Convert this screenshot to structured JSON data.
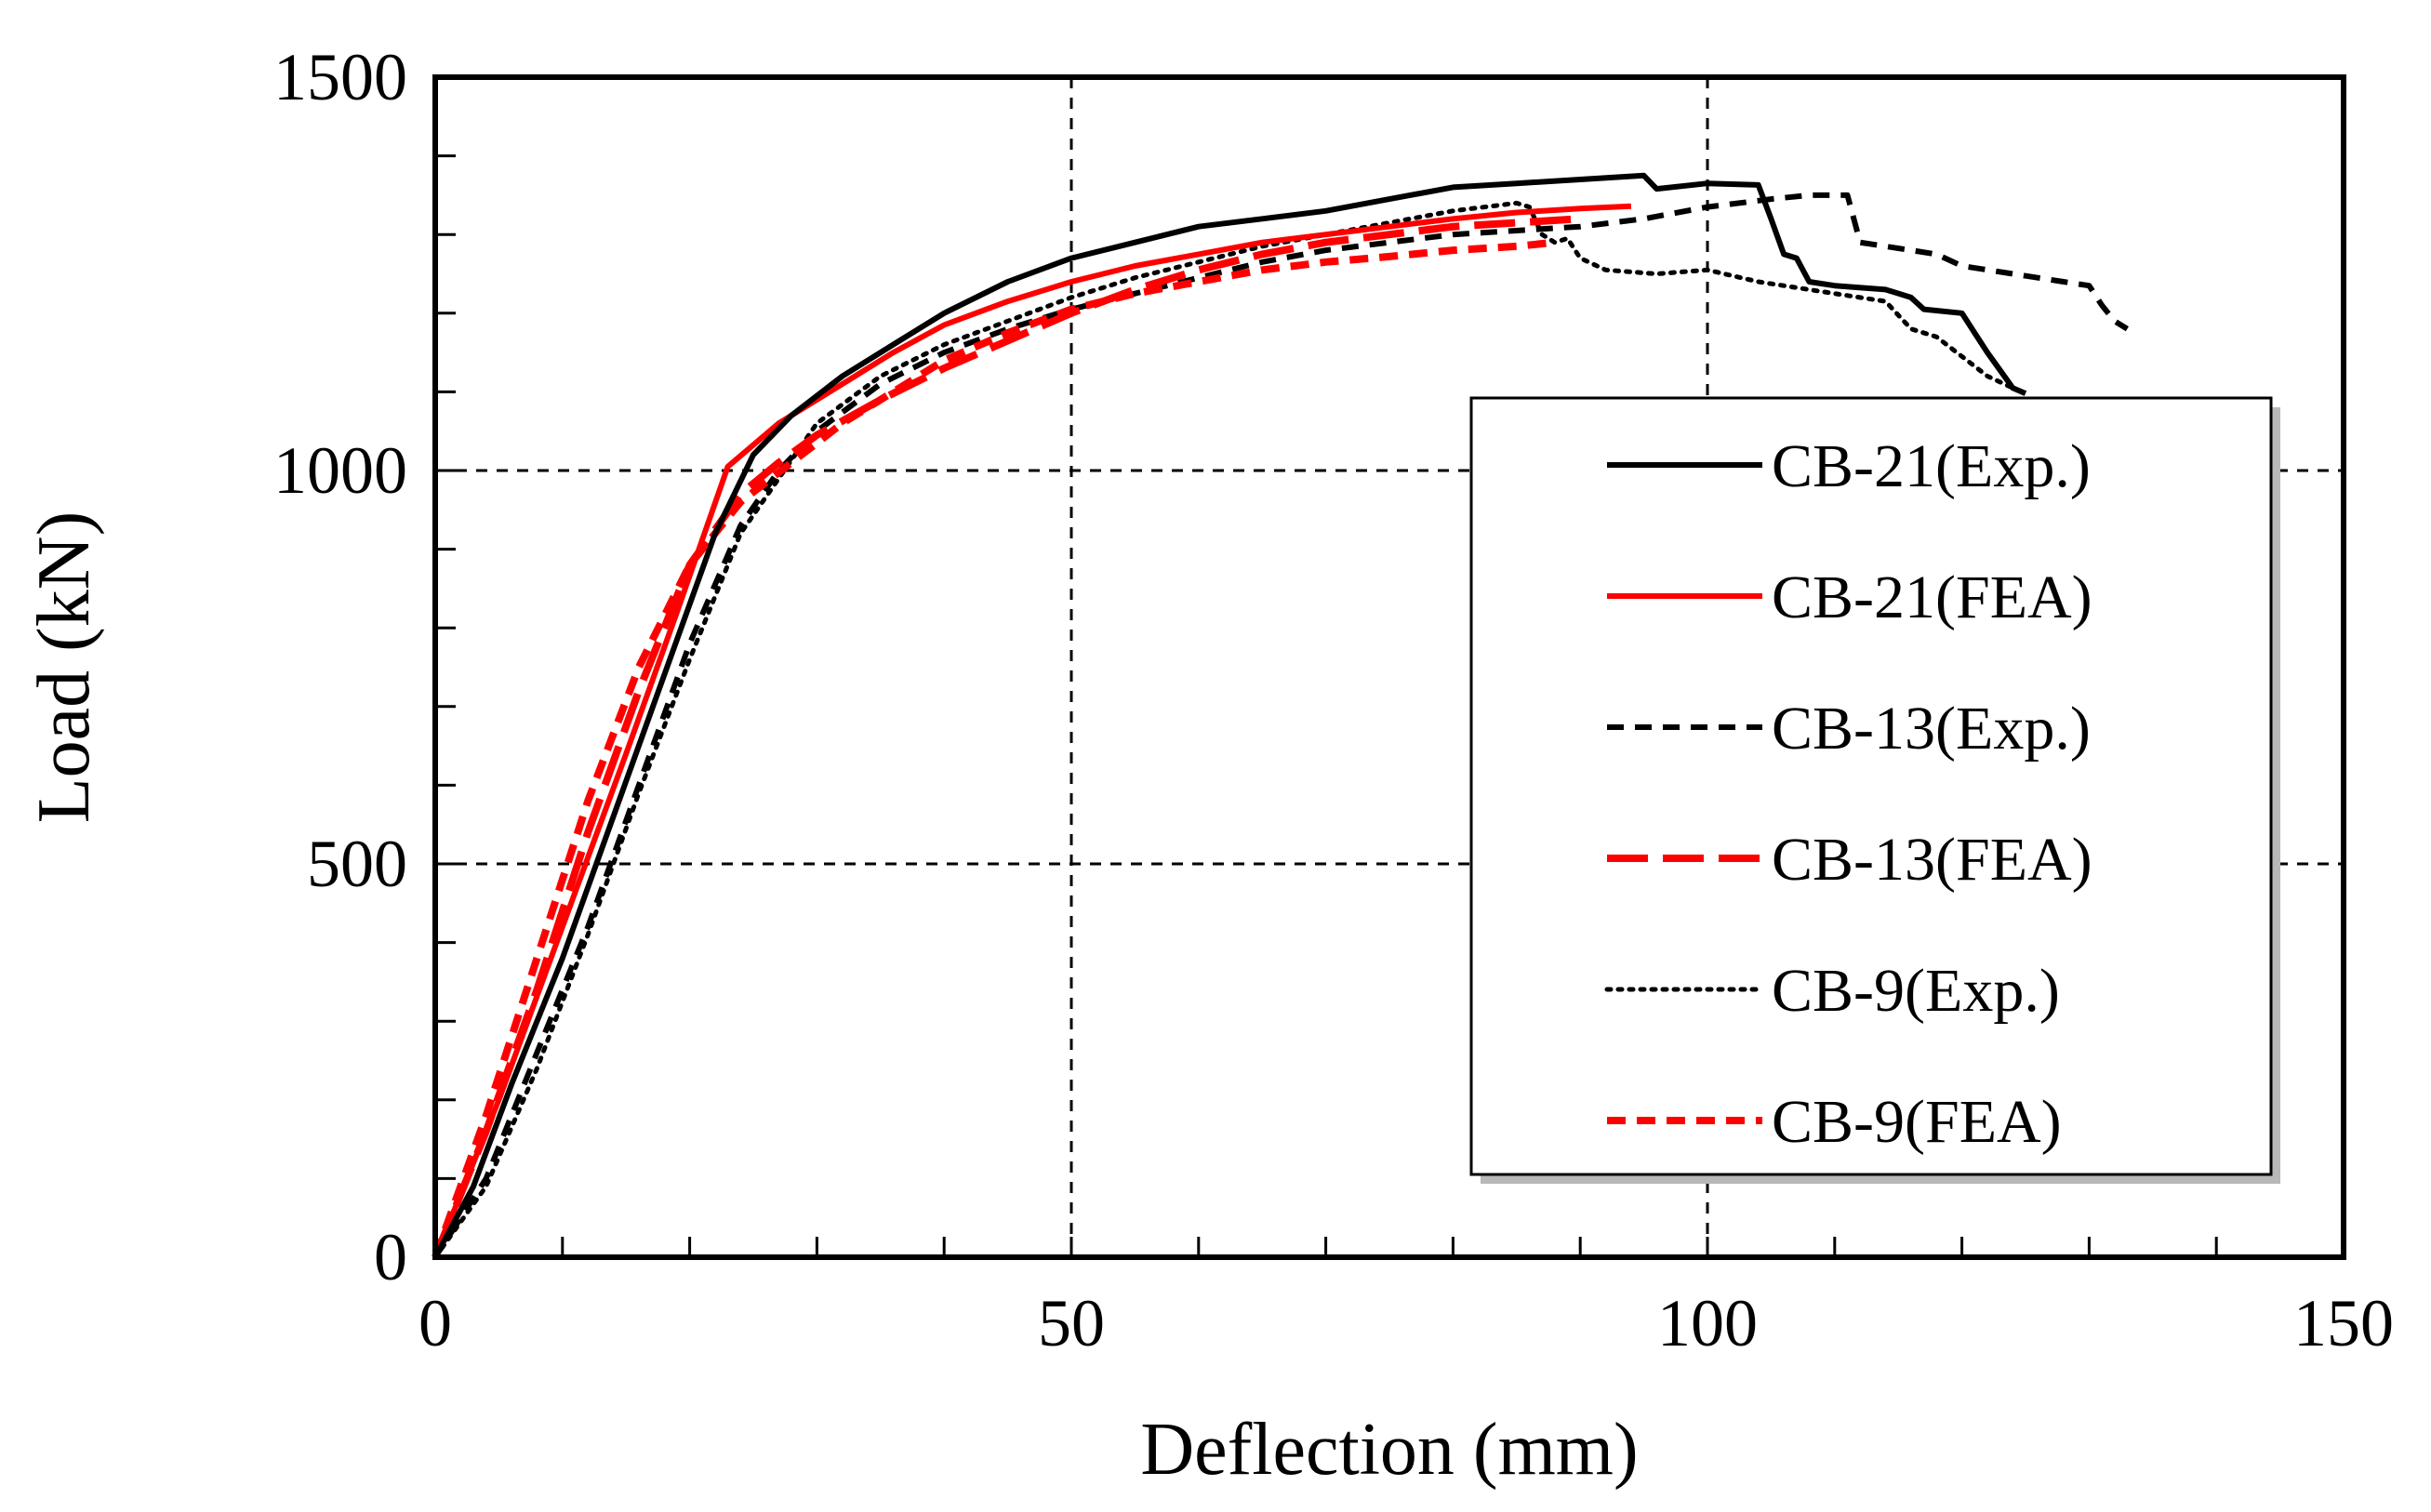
{
  "chart_data": {
    "type": "line",
    "xlabel": "Deflection (mm)",
    "ylabel": "Load (kN)",
    "xlim": [
      0,
      150
    ],
    "ylim": [
      0,
      1500
    ],
    "x_ticks": [
      "0",
      "50",
      "100",
      "150"
    ],
    "y_ticks": [
      "0",
      "500",
      "1000",
      "1500"
    ],
    "x_tick_values": [
      0,
      50,
      100,
      150
    ],
    "y_tick_values": [
      0,
      500,
      1000,
      1500
    ],
    "x_minor_step": 10,
    "y_minor_step": 100,
    "grid": "dashed major gridlines",
    "legend_position": "right",
    "series": [
      {
        "name": "CB-21(Exp.)",
        "color": "#000000",
        "style": "solid",
        "points": [
          [
            0,
            0
          ],
          [
            3,
            90
          ],
          [
            6,
            220
          ],
          [
            10,
            380
          ],
          [
            14,
            560
          ],
          [
            18,
            740
          ],
          [
            22,
            920
          ],
          [
            25,
            1020
          ],
          [
            28,
            1070
          ],
          [
            32,
            1120
          ],
          [
            36,
            1160
          ],
          [
            40,
            1200
          ],
          [
            45,
            1240
          ],
          [
            50,
            1270
          ],
          [
            55,
            1290
          ],
          [
            60,
            1310
          ],
          [
            65,
            1320
          ],
          [
            70,
            1330
          ],
          [
            75,
            1345
          ],
          [
            80,
            1360
          ],
          [
            85,
            1365
          ],
          [
            90,
            1370
          ],
          [
            95,
            1375
          ],
          [
            96,
            1358
          ],
          [
            100,
            1365
          ],
          [
            104,
            1363
          ],
          [
            105,
            1320
          ],
          [
            106,
            1275
          ],
          [
            107,
            1270
          ],
          [
            108,
            1240
          ],
          [
            110,
            1235
          ],
          [
            114,
            1230
          ],
          [
            116,
            1220
          ],
          [
            117,
            1205
          ],
          [
            120,
            1200
          ],
          [
            121,
            1175
          ],
          [
            122,
            1150
          ],
          [
            124,
            1105
          ],
          [
            125,
            1098
          ]
        ]
      },
      {
        "name": "CB-21(FEA)",
        "color": "#ff0000",
        "style": "solid",
        "points": [
          [
            0,
            0
          ],
          [
            5,
            200
          ],
          [
            10,
            420
          ],
          [
            15,
            640
          ],
          [
            19,
            820
          ],
          [
            23,
            1005
          ],
          [
            27,
            1060
          ],
          [
            32,
            1110
          ],
          [
            36,
            1150
          ],
          [
            40,
            1185
          ],
          [
            45,
            1215
          ],
          [
            50,
            1240
          ],
          [
            55,
            1260
          ],
          [
            60,
            1275
          ],
          [
            65,
            1290
          ],
          [
            70,
            1300
          ],
          [
            75,
            1310
          ],
          [
            80,
            1320
          ],
          [
            85,
            1328
          ],
          [
            90,
            1333
          ],
          [
            94,
            1336
          ]
        ]
      },
      {
        "name": "CB-13(Exp.)",
        "color": "#000000",
        "style": "dashed",
        "points": [
          [
            0,
            0
          ],
          [
            4,
            100
          ],
          [
            8,
            260
          ],
          [
            12,
            420
          ],
          [
            16,
            600
          ],
          [
            20,
            780
          ],
          [
            24,
            930
          ],
          [
            27,
            1000
          ],
          [
            30,
            1050
          ],
          [
            35,
            1110
          ],
          [
            40,
            1150
          ],
          [
            45,
            1180
          ],
          [
            50,
            1205
          ],
          [
            55,
            1225
          ],
          [
            60,
            1245
          ],
          [
            65,
            1265
          ],
          [
            70,
            1280
          ],
          [
            75,
            1290
          ],
          [
            80,
            1300
          ],
          [
            85,
            1305
          ],
          [
            90,
            1310
          ],
          [
            95,
            1320
          ],
          [
            100,
            1335
          ],
          [
            105,
            1345
          ],
          [
            108,
            1350
          ],
          [
            111,
            1350
          ],
          [
            112,
            1290
          ],
          [
            114,
            1285
          ],
          [
            118,
            1275
          ],
          [
            120,
            1260
          ],
          [
            124,
            1250
          ],
          [
            128,
            1240
          ],
          [
            130,
            1235
          ],
          [
            131,
            1210
          ],
          [
            132,
            1190
          ],
          [
            133,
            1180
          ]
        ]
      },
      {
        "name": "CB-13(FEA)",
        "color": "#ff0000",
        "style": "longdash",
        "points": [
          [
            0,
            0
          ],
          [
            4,
            160
          ],
          [
            8,
            340
          ],
          [
            12,
            540
          ],
          [
            16,
            720
          ],
          [
            20,
            880
          ],
          [
            24,
            970
          ],
          [
            27,
            1010
          ],
          [
            30,
            1045
          ],
          [
            35,
            1090
          ],
          [
            40,
            1130
          ],
          [
            45,
            1165
          ],
          [
            50,
            1200
          ],
          [
            55,
            1230
          ],
          [
            60,
            1255
          ],
          [
            65,
            1275
          ],
          [
            70,
            1290
          ],
          [
            75,
            1300
          ],
          [
            80,
            1310
          ],
          [
            85,
            1315
          ],
          [
            90,
            1320
          ]
        ]
      },
      {
        "name": "CB-9(Exp.)",
        "color": "#000000",
        "style": "dotted",
        "points": [
          [
            0,
            0
          ],
          [
            4,
            90
          ],
          [
            8,
            240
          ],
          [
            12,
            410
          ],
          [
            16,
            590
          ],
          [
            20,
            760
          ],
          [
            24,
            920
          ],
          [
            27,
            990
          ],
          [
            30,
            1060
          ],
          [
            35,
            1120
          ],
          [
            40,
            1160
          ],
          [
            45,
            1190
          ],
          [
            50,
            1220
          ],
          [
            55,
            1245
          ],
          [
            60,
            1265
          ],
          [
            65,
            1285
          ],
          [
            70,
            1300
          ],
          [
            75,
            1315
          ],
          [
            80,
            1330
          ],
          [
            85,
            1340
          ],
          [
            86,
            1335
          ],
          [
            87,
            1300
          ],
          [
            88,
            1290
          ],
          [
            89,
            1295
          ],
          [
            90,
            1270
          ],
          [
            92,
            1255
          ],
          [
            96,
            1250
          ],
          [
            100,
            1255
          ],
          [
            104,
            1240
          ],
          [
            106,
            1235
          ],
          [
            110,
            1225
          ],
          [
            114,
            1215
          ],
          [
            116,
            1180
          ],
          [
            118,
            1170
          ],
          [
            120,
            1145
          ],
          [
            122,
            1120
          ],
          [
            124,
            1105
          ]
        ]
      },
      {
        "name": "CB-9(FEA)",
        "color": "#ff0000",
        "style": "shortdash",
        "points": [
          [
            0,
            0
          ],
          [
            4,
            180
          ],
          [
            8,
            380
          ],
          [
            12,
            580
          ],
          [
            16,
            750
          ],
          [
            20,
            880
          ],
          [
            24,
            960
          ],
          [
            28,
            1010
          ],
          [
            32,
            1060
          ],
          [
            36,
            1100
          ],
          [
            40,
            1140
          ],
          [
            45,
            1175
          ],
          [
            50,
            1205
          ],
          [
            55,
            1225
          ],
          [
            60,
            1240
          ],
          [
            65,
            1255
          ],
          [
            70,
            1265
          ],
          [
            75,
            1272
          ],
          [
            80,
            1280
          ],
          [
            85,
            1285
          ],
          [
            88,
            1290
          ]
        ]
      }
    ]
  }
}
